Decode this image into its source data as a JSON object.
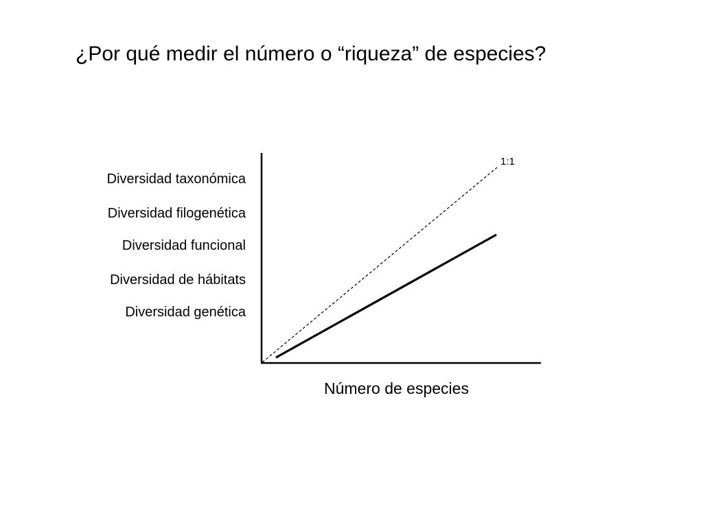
{
  "title": "¿Por qué medir el número o “riqueza” de especies?",
  "y_labels": [
    "Diversidad taxonómica",
    "Diversidad filogenética",
    "Diversidad funcional",
    "Diversidad de hábitats",
    "Diversidad genética"
  ],
  "x_axis_label": "Número de especies",
  "reference_line_label": "1:1"
}
